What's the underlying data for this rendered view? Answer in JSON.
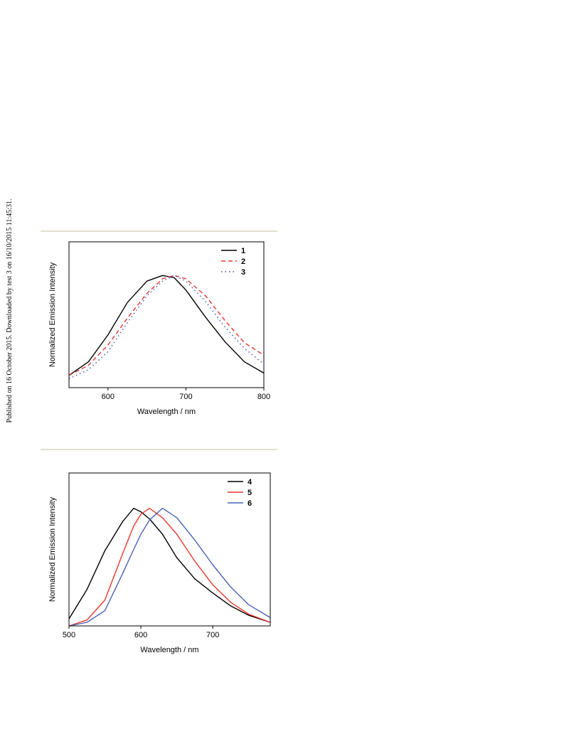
{
  "watermark": "Published on 16 October 2015. Downloaded by test 3 on 16/10/2015 11:45:31.",
  "chart_data": [
    {
      "type": "line",
      "x_label": "Wavelength / nm",
      "y_label": "Normalized Emission Intensity",
      "x": [
        550,
        575,
        600,
        625,
        650,
        670,
        685,
        700,
        725,
        750,
        775,
        800
      ],
      "xlim": [
        550,
        800
      ],
      "xticks": [
        600,
        700,
        800
      ],
      "ylim": [
        0,
        1.3
      ],
      "legend": "upper right",
      "series": [
        {
          "name": "1",
          "color": "#000000",
          "dash": "solid",
          "values": [
            0.11,
            0.23,
            0.47,
            0.76,
            0.95,
            1.0,
            0.98,
            0.87,
            0.63,
            0.41,
            0.23,
            0.13
          ]
        },
        {
          "name": "2",
          "color": "#e8372c",
          "dash": "dashed",
          "values": [
            0.11,
            0.2,
            0.38,
            0.62,
            0.84,
            0.97,
            1.0,
            0.97,
            0.82,
            0.6,
            0.4,
            0.29
          ]
        },
        {
          "name": "3",
          "color": "#3a4fc4",
          "dash": "dotted",
          "values": [
            0.08,
            0.16,
            0.32,
            0.58,
            0.82,
            0.95,
            1.0,
            0.95,
            0.77,
            0.54,
            0.35,
            0.21
          ]
        }
      ]
    },
    {
      "type": "line",
      "x_label": "Wavelength / nm",
      "y_label": "Normalized Emission Intensity",
      "x": [
        500,
        525,
        550,
        575,
        590,
        600,
        612,
        630,
        650,
        675,
        700,
        725,
        750,
        780
      ],
      "xlim": [
        500,
        780
      ],
      "xticks": [
        500,
        600,
        700
      ],
      "ylim": [
        0,
        1.3
      ],
      "legend": "upper right",
      "series": [
        {
          "name": "4",
          "color": "#000000",
          "dash": "solid",
          "values": [
            0.06,
            0.31,
            0.64,
            0.89,
            1.0,
            0.97,
            0.91,
            0.78,
            0.58,
            0.4,
            0.28,
            0.17,
            0.09,
            0.03
          ]
        },
        {
          "name": "5",
          "color": "#e8372c",
          "dash": "solid",
          "values": [
            0.0,
            0.05,
            0.22,
            0.62,
            0.85,
            0.95,
            1.0,
            0.92,
            0.78,
            0.55,
            0.35,
            0.2,
            0.1,
            0.03
          ]
        },
        {
          "name": "6",
          "color": "#4a62b8",
          "dash": "solid",
          "values": [
            0.0,
            0.03,
            0.13,
            0.45,
            0.65,
            0.78,
            0.9,
            1.0,
            0.92,
            0.73,
            0.52,
            0.33,
            0.18,
            0.07
          ]
        }
      ]
    }
  ]
}
